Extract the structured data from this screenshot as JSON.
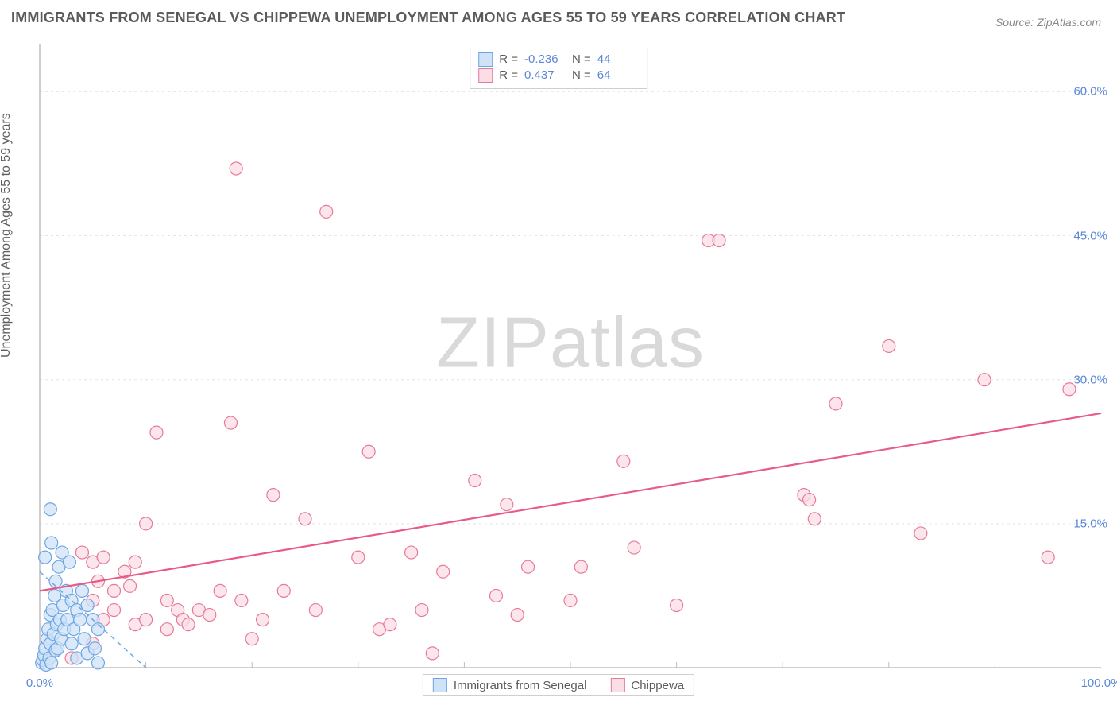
{
  "title": "IMMIGRANTS FROM SENEGAL VS CHIPPEWA UNEMPLOYMENT AMONG AGES 55 TO 59 YEARS CORRELATION CHART",
  "source_label": "Source: ZipAtlas.com",
  "ylabel": "Unemployment Among Ages 55 to 59 years",
  "watermark_a": "ZIP",
  "watermark_b": "atlas",
  "chart": {
    "type": "scatter",
    "background_color": "#ffffff",
    "grid_color": "#e4e4e4",
    "axis_color": "#bdbdbd",
    "tick_color": "#5b87d6",
    "title_color": "#5a5a5a",
    "title_fontsize": 18,
    "label_fontsize": 16,
    "tick_fontsize": 15,
    "xlim": [
      0,
      100
    ],
    "ylim": [
      0,
      65
    ],
    "yticks": [
      15.0,
      30.0,
      45.0,
      60.0
    ],
    "ytick_labels": [
      "15.0%",
      "30.0%",
      "45.0%",
      "60.0%"
    ],
    "xticks": [
      0,
      100
    ],
    "xtick_labels": [
      "0.0%",
      "100.0%"
    ],
    "xminor_step": 10,
    "marker_radius": 8,
    "marker_stroke_width": 1.2,
    "series": [
      {
        "name": "Immigrants from Senegal",
        "color_fill": "#cfe2f7",
        "color_stroke": "#6ea6e4",
        "R": "-0.236",
        "N": "44",
        "trend": {
          "x1": 0,
          "y1": 10.0,
          "x2": 10,
          "y2": 0.0,
          "dash": "6 5",
          "width": 1.5,
          "color": "#6ea6e4"
        },
        "points": [
          [
            0.2,
            0.5
          ],
          [
            0.3,
            0.8
          ],
          [
            0.4,
            1.3
          ],
          [
            0.5,
            2.0
          ],
          [
            0.6,
            0.3
          ],
          [
            0.7,
            3.0
          ],
          [
            0.8,
            4.0
          ],
          [
            0.9,
            1.0
          ],
          [
            1.0,
            5.5
          ],
          [
            1.0,
            2.5
          ],
          [
            1.1,
            0.5
          ],
          [
            1.2,
            6.0
          ],
          [
            1.3,
            3.5
          ],
          [
            1.4,
            7.5
          ],
          [
            1.5,
            1.8
          ],
          [
            1.5,
            9.0
          ],
          [
            1.6,
            4.5
          ],
          [
            1.7,
            2.0
          ],
          [
            1.8,
            10.5
          ],
          [
            1.9,
            5.0
          ],
          [
            2.0,
            3.0
          ],
          [
            2.1,
            12.0
          ],
          [
            2.2,
            6.5
          ],
          [
            2.3,
            4.0
          ],
          [
            2.5,
            8.0
          ],
          [
            2.6,
            5.0
          ],
          [
            2.8,
            11.0
          ],
          [
            3.0,
            7.0
          ],
          [
            3.0,
            2.5
          ],
          [
            3.2,
            4.0
          ],
          [
            3.5,
            6.0
          ],
          [
            3.5,
            1.0
          ],
          [
            3.8,
            5.0
          ],
          [
            4.0,
            8.0
          ],
          [
            4.2,
            3.0
          ],
          [
            4.5,
            6.5
          ],
          [
            4.5,
            1.5
          ],
          [
            5.0,
            5.0
          ],
          [
            5.2,
            2.0
          ],
          [
            5.5,
            4.0
          ],
          [
            5.5,
            0.5
          ],
          [
            1.0,
            16.5
          ],
          [
            1.1,
            13.0
          ],
          [
            0.5,
            11.5
          ]
        ]
      },
      {
        "name": "Chippewa",
        "color_fill": "#fbdde5",
        "color_stroke": "#e67a9b",
        "R": "0.437",
        "N": "64",
        "trend": {
          "x1": 0,
          "y1": 8.0,
          "x2": 100,
          "y2": 26.5,
          "dash": "",
          "width": 2.2,
          "color": "#e85b88"
        },
        "points": [
          [
            3,
            1.0
          ],
          [
            4,
            12.0
          ],
          [
            5,
            7.0
          ],
          [
            5,
            11.0
          ],
          [
            5.5,
            9.0
          ],
          [
            6,
            11.5
          ],
          [
            6,
            5.0
          ],
          [
            7,
            8.0
          ],
          [
            7,
            6.0
          ],
          [
            8,
            10.0
          ],
          [
            8.5,
            8.5
          ],
          [
            9,
            11.0
          ],
          [
            9,
            4.5
          ],
          [
            10,
            5.0
          ],
          [
            10,
            15.0
          ],
          [
            11,
            24.5
          ],
          [
            12,
            7.0
          ],
          [
            13,
            6.0
          ],
          [
            13.5,
            5.0
          ],
          [
            14,
            4.5
          ],
          [
            15,
            6.0
          ],
          [
            16,
            5.5
          ],
          [
            17,
            8.0
          ],
          [
            18,
            25.5
          ],
          [
            18.5,
            52.0
          ],
          [
            19,
            7.0
          ],
          [
            21,
            5.0
          ],
          [
            22,
            18.0
          ],
          [
            23,
            8.0
          ],
          [
            25,
            15.5
          ],
          [
            26,
            6.0
          ],
          [
            27,
            47.5
          ],
          [
            30,
            11.5
          ],
          [
            31,
            22.5
          ],
          [
            32,
            4.0
          ],
          [
            35,
            12.0
          ],
          [
            36,
            6.0
          ],
          [
            37,
            1.5
          ],
          [
            38,
            10.0
          ],
          [
            41,
            19.5
          ],
          [
            43,
            7.5
          ],
          [
            44,
            17.0
          ],
          [
            46,
            10.5
          ],
          [
            50,
            7.0
          ],
          [
            51,
            10.5
          ],
          [
            55,
            21.5
          ],
          [
            56,
            12.5
          ],
          [
            63,
            44.5
          ],
          [
            64,
            44.5
          ],
          [
            72,
            18.0
          ],
          [
            72.5,
            17.5
          ],
          [
            73,
            15.5
          ],
          [
            75,
            27.5
          ],
          [
            80,
            33.5
          ],
          [
            83,
            14.0
          ],
          [
            89,
            30.0
          ],
          [
            95,
            11.5
          ],
          [
            97,
            29.0
          ],
          [
            5,
            2.5
          ],
          [
            12,
            4.0
          ],
          [
            20,
            3.0
          ],
          [
            33,
            4.5
          ],
          [
            45,
            5.5
          ],
          [
            60,
            6.5
          ]
        ]
      }
    ]
  },
  "stats_labels": {
    "R": "R =",
    "N": "N ="
  },
  "legend_labels": {
    "a": "Immigrants from Senegal",
    "b": "Chippewa"
  }
}
